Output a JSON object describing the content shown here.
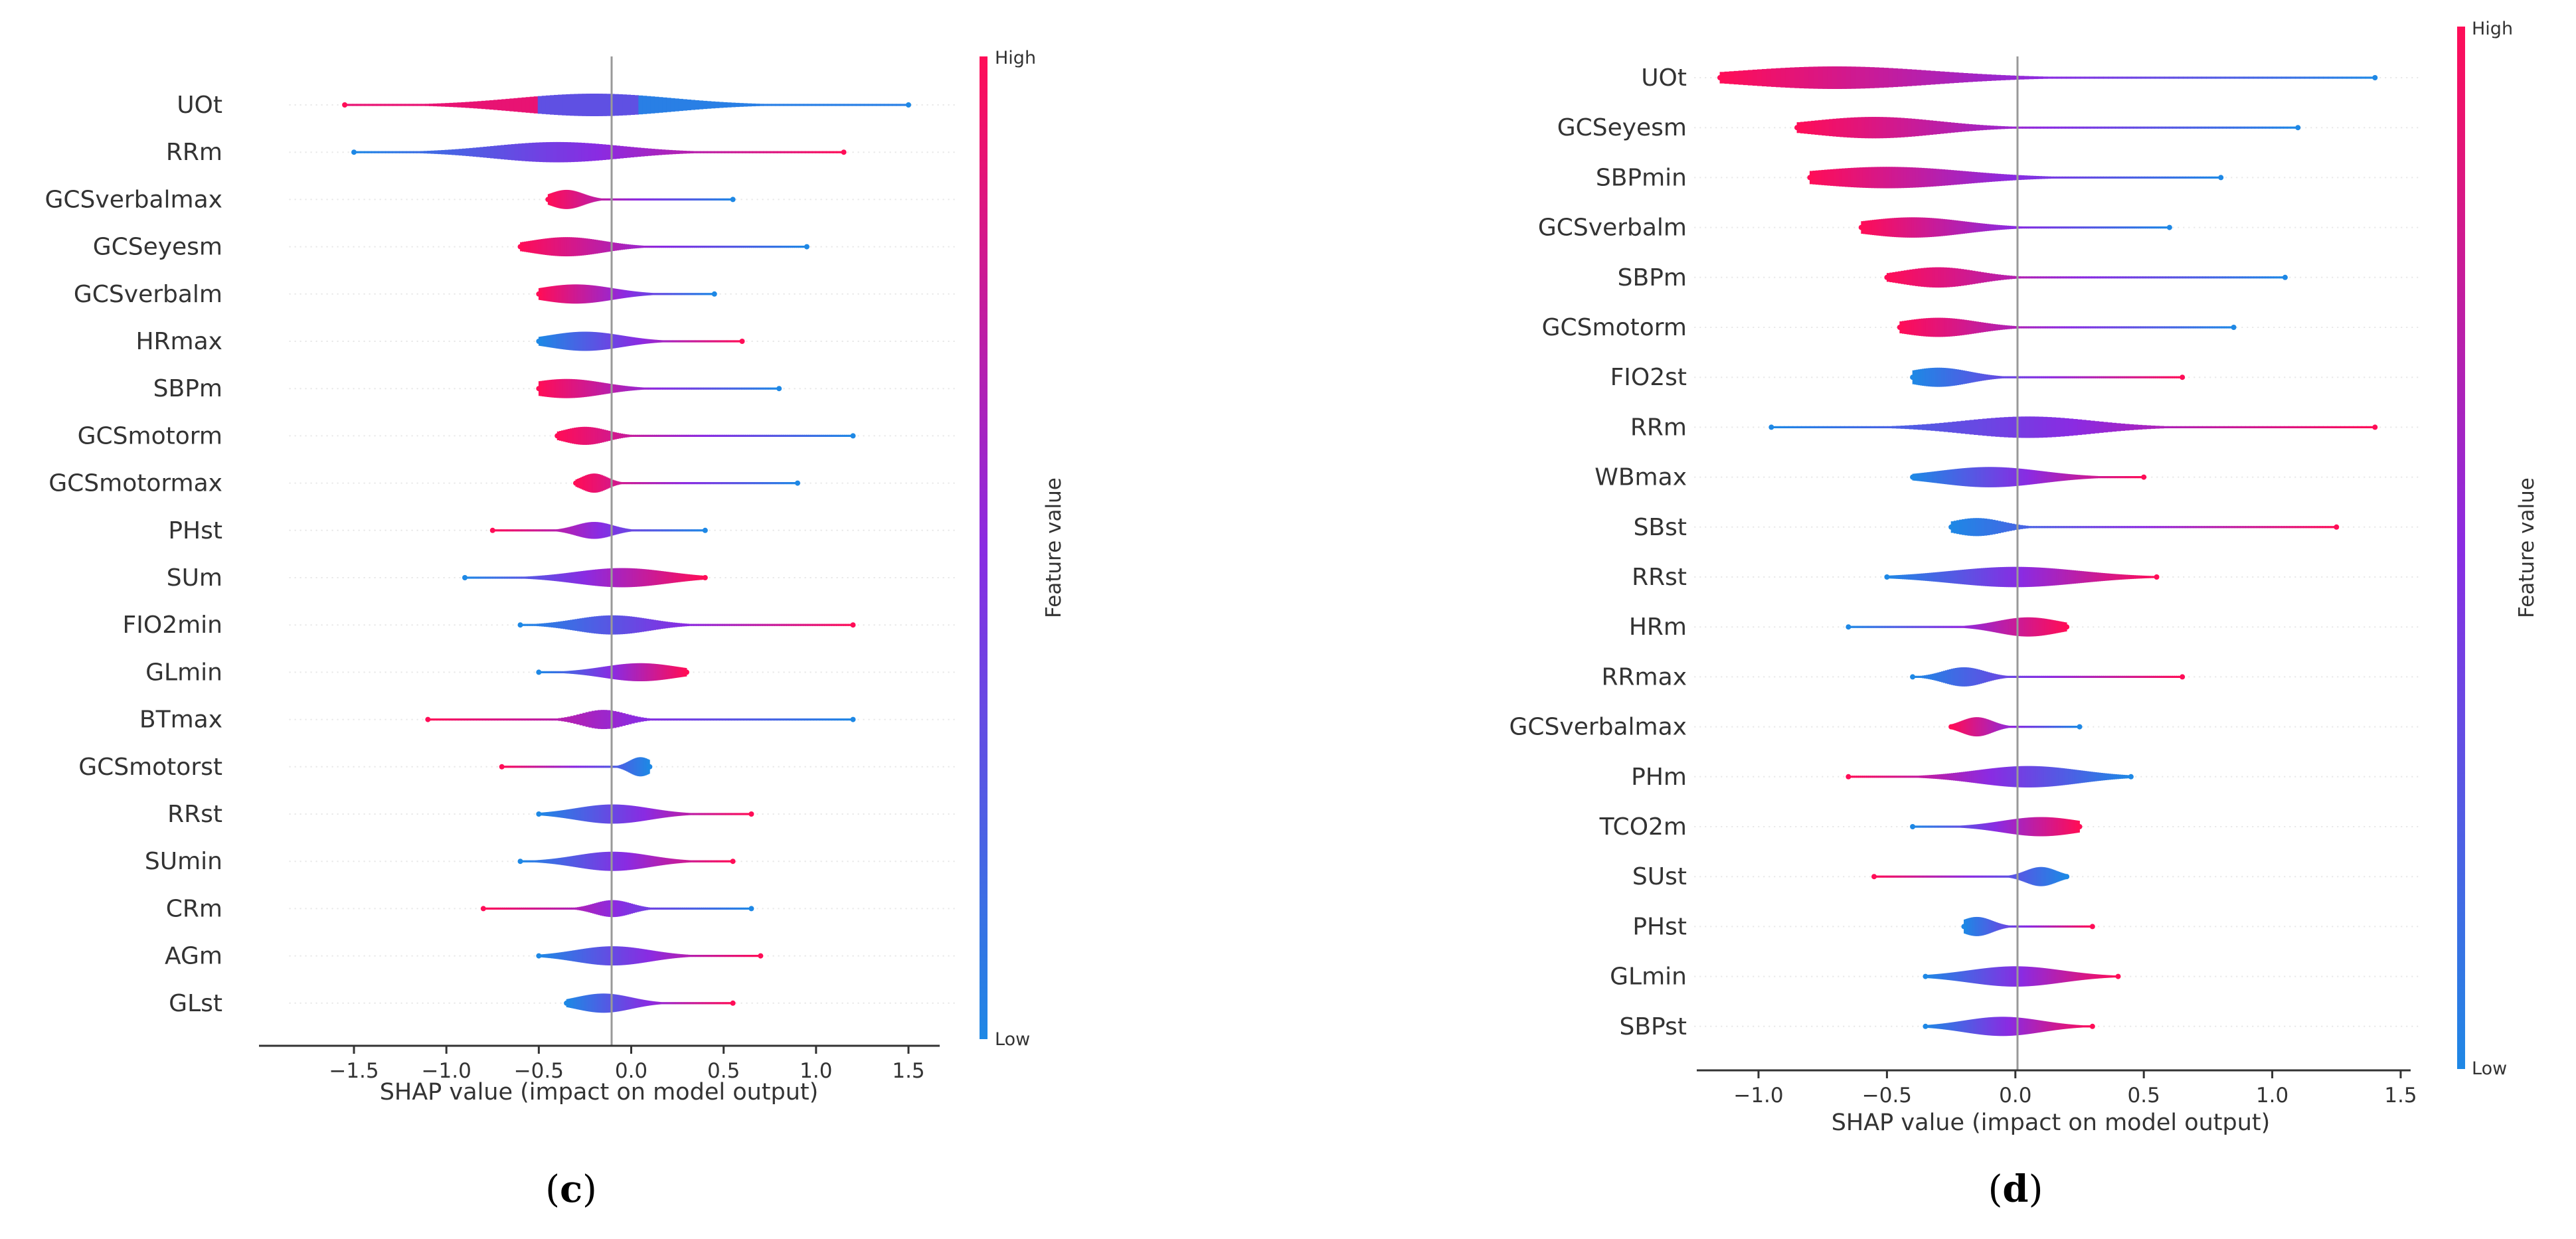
{
  "chart_data": [
    {
      "type": "violin-summary",
      "panel_label_open": "(",
      "panel_label_letter": "c",
      "panel_label_close": ")",
      "xlabel": "SHAP value (impact on model output)",
      "xlim": [
        -1.85,
        1.75
      ],
      "xticks": [
        -1.5,
        -1.0,
        -0.5,
        0.0,
        0.5,
        1.0,
        1.5
      ],
      "xtick_labels": [
        "−1.5",
        "−1.0",
        "−0.5",
        "0.0",
        "0.5",
        "1.0",
        "1.5"
      ],
      "colorbar": {
        "high": "High",
        "low": "Low",
        "title": "Feature value"
      },
      "features": [
        {
          "name": "UOt",
          "min": -1.55,
          "max": 1.5,
          "mode": -0.2,
          "spread": 0.42,
          "thick": 1.0,
          "color": "mixed"
        },
        {
          "name": "RRm",
          "min": -1.5,
          "max": 1.15,
          "mode": -0.4,
          "spread": 0.35,
          "thick": 0.9,
          "color": "lowleft"
        },
        {
          "name": "GCSverbalmax",
          "min": -0.45,
          "max": 0.55,
          "mode": -0.35,
          "spread": 0.09,
          "thick": 0.85,
          "color": "highleft"
        },
        {
          "name": "GCSeyesm",
          "min": -0.6,
          "max": 0.95,
          "mode": -0.35,
          "spread": 0.2,
          "thick": 0.85,
          "color": "highleft"
        },
        {
          "name": "GCSverbalm",
          "min": -0.5,
          "max": 0.45,
          "mode": -0.3,
          "spread": 0.2,
          "thick": 0.85,
          "color": "highleft"
        },
        {
          "name": "HRmax",
          "min": -0.5,
          "max": 0.6,
          "mode": -0.25,
          "spread": 0.2,
          "thick": 0.85,
          "color": "lowleft"
        },
        {
          "name": "SBPm",
          "min": -0.5,
          "max": 0.8,
          "mode": -0.35,
          "spread": 0.2,
          "thick": 0.85,
          "color": "highleft"
        },
        {
          "name": "GCSmotorm",
          "min": -0.4,
          "max": 1.2,
          "mode": -0.25,
          "spread": 0.12,
          "thick": 0.8,
          "color": "highleft"
        },
        {
          "name": "GCSmotormax",
          "min": -0.3,
          "max": 0.9,
          "mode": -0.2,
          "spread": 0.07,
          "thick": 0.85,
          "color": "highleft"
        },
        {
          "name": "PHst",
          "min": -0.75,
          "max": 0.4,
          "mode": -0.2,
          "spread": 0.1,
          "thick": 0.75,
          "color": "highleft"
        },
        {
          "name": "SUm",
          "min": -0.9,
          "max": 0.4,
          "mode": -0.05,
          "spread": 0.25,
          "thick": 0.85,
          "color": "lowleft"
        },
        {
          "name": "FIO2min",
          "min": -0.6,
          "max": 1.2,
          "mode": -0.1,
          "spread": 0.2,
          "thick": 0.85,
          "color": "lowleft"
        },
        {
          "name": "GLmin",
          "min": -0.5,
          "max": 0.3,
          "mode": 0.05,
          "spread": 0.2,
          "thick": 0.8,
          "color": "lowleft"
        },
        {
          "name": "BTmax",
          "min": -1.1,
          "max": 1.2,
          "mode": -0.15,
          "spread": 0.12,
          "thick": 0.85,
          "color": "highleft"
        },
        {
          "name": "GCSmotorst",
          "min": -0.7,
          "max": 0.1,
          "mode": 0.05,
          "spread": 0.06,
          "thick": 0.85,
          "color": "highleft"
        },
        {
          "name": "RRst",
          "min": -0.5,
          "max": 0.65,
          "mode": -0.1,
          "spread": 0.2,
          "thick": 0.85,
          "color": "lowleft"
        },
        {
          "name": "SUmin",
          "min": -0.6,
          "max": 0.55,
          "mode": -0.1,
          "spread": 0.2,
          "thick": 0.85,
          "color": "lowleft"
        },
        {
          "name": "CRm",
          "min": -0.8,
          "max": 0.65,
          "mode": -0.1,
          "spread": 0.1,
          "thick": 0.75,
          "color": "highleft"
        },
        {
          "name": "AGm",
          "min": -0.5,
          "max": 0.7,
          "mode": -0.1,
          "spread": 0.2,
          "thick": 0.85,
          "color": "lowleft"
        },
        {
          "name": "GLst",
          "min": -0.35,
          "max": 0.55,
          "mode": -0.15,
          "spread": 0.15,
          "thick": 0.85,
          "color": "lowleft"
        }
      ]
    },
    {
      "type": "violin-summary",
      "panel_label_open": "(",
      "panel_label_letter": "d",
      "panel_label_close": ")",
      "xlabel": "SHAP value (impact on model output)",
      "xlim": [
        -1.25,
        1.58
      ],
      "xticks": [
        -1.0,
        -0.5,
        0.0,
        0.5,
        1.0,
        1.5
      ],
      "xtick_labels": [
        "−1.0",
        "−0.5",
        "0.0",
        "0.5",
        "1.0",
        "1.5"
      ],
      "colorbar": {
        "high": "High",
        "low": "Low",
        "title": "Feature value"
      },
      "features": [
        {
          "name": "UOt",
          "min": -1.15,
          "max": 1.4,
          "mode": -0.7,
          "spread": 0.38,
          "thick": 1.0,
          "color": "highleft"
        },
        {
          "name": "GCSeyesm",
          "min": -0.85,
          "max": 1.1,
          "mode": -0.55,
          "spread": 0.25,
          "thick": 0.95,
          "color": "highleft"
        },
        {
          "name": "SBPmin",
          "min": -0.8,
          "max": 0.8,
          "mode": -0.5,
          "spread": 0.3,
          "thick": 0.95,
          "color": "highleft"
        },
        {
          "name": "GCSverbalm",
          "min": -0.6,
          "max": 0.6,
          "mode": -0.4,
          "spread": 0.2,
          "thick": 0.9,
          "color": "highleft"
        },
        {
          "name": "SBPm",
          "min": -0.5,
          "max": 1.05,
          "mode": -0.3,
          "spread": 0.15,
          "thick": 0.9,
          "color": "highleft"
        },
        {
          "name": "GCSmotorm",
          "min": -0.45,
          "max": 0.85,
          "mode": -0.3,
          "spread": 0.15,
          "thick": 0.85,
          "color": "highleft"
        },
        {
          "name": "FIO2st",
          "min": -0.4,
          "max": 0.65,
          "mode": -0.3,
          "spread": 0.12,
          "thick": 0.85,
          "color": "lowleft"
        },
        {
          "name": "RRm",
          "min": -0.95,
          "max": 1.4,
          "mode": 0.05,
          "spread": 0.25,
          "thick": 0.95,
          "color": "lowleft"
        },
        {
          "name": "WBmax",
          "min": -0.4,
          "max": 0.5,
          "mode": -0.1,
          "spread": 0.2,
          "thick": 0.9,
          "color": "lowleft"
        },
        {
          "name": "SBst",
          "min": -0.25,
          "max": 1.25,
          "mode": -0.15,
          "spread": 0.1,
          "thick": 0.8,
          "color": "lowleft"
        },
        {
          "name": "RRst",
          "min": -0.5,
          "max": 0.55,
          "mode": 0.0,
          "spread": 0.25,
          "thick": 0.9,
          "color": "lowleft"
        },
        {
          "name": "HRm",
          "min": -0.65,
          "max": 0.2,
          "mode": 0.05,
          "spread": 0.12,
          "thick": 0.85,
          "color": "lowleft"
        },
        {
          "name": "RRmax",
          "min": -0.4,
          "max": 0.65,
          "mode": -0.2,
          "spread": 0.08,
          "thick": 0.85,
          "color": "lowleft"
        },
        {
          "name": "GCSverbalmax",
          "min": -0.25,
          "max": 0.25,
          "mode": -0.15,
          "spread": 0.06,
          "thick": 0.85,
          "color": "highleft"
        },
        {
          "name": "PHm",
          "min": -0.65,
          "max": 0.45,
          "mode": 0.05,
          "spread": 0.2,
          "thick": 0.95,
          "color": "highleft"
        },
        {
          "name": "TCO2m",
          "min": -0.4,
          "max": 0.25,
          "mode": 0.1,
          "spread": 0.15,
          "thick": 0.85,
          "color": "lowleft"
        },
        {
          "name": "SUst",
          "min": -0.55,
          "max": 0.2,
          "mode": 0.1,
          "spread": 0.06,
          "thick": 0.85,
          "color": "highleft"
        },
        {
          "name": "PHst",
          "min": -0.2,
          "max": 0.3,
          "mode": -0.15,
          "spread": 0.06,
          "thick": 0.85,
          "color": "lowleft"
        },
        {
          "name": "GLmin",
          "min": -0.35,
          "max": 0.4,
          "mode": 0.0,
          "spread": 0.18,
          "thick": 0.9,
          "color": "lowleft"
        },
        {
          "name": "SBPst",
          "min": -0.35,
          "max": 0.3,
          "mode": -0.05,
          "spread": 0.15,
          "thick": 0.85,
          "color": "lowleft"
        }
      ]
    }
  ],
  "colors": {
    "high": "#ff0d57",
    "low": "#1e88e5",
    "mid": "#8a2be2",
    "axis": "#333333",
    "zero_line": "#999999"
  }
}
